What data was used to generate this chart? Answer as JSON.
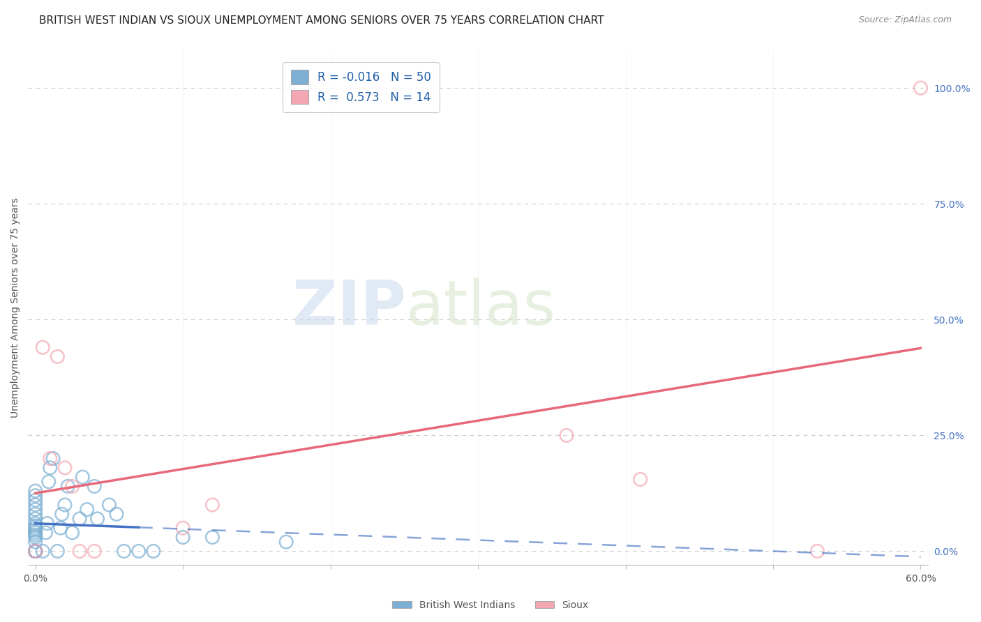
{
  "title": "BRITISH WEST INDIAN VS SIOUX UNEMPLOYMENT AMONG SENIORS OVER 75 YEARS CORRELATION CHART",
  "source": "Source: ZipAtlas.com",
  "xlabel": "",
  "ylabel": "Unemployment Among Seniors over 75 years",
  "xlim": [
    -0.005,
    0.605
  ],
  "ylim": [
    -0.03,
    1.08
  ],
  "xticks": [
    0.0,
    0.1,
    0.2,
    0.3,
    0.4,
    0.5,
    0.6
  ],
  "xticklabels": [
    "0.0%",
    "",
    "",
    "",
    "",
    "",
    "60.0%"
  ],
  "yticks_right": [
    0.0,
    0.25,
    0.5,
    0.75,
    1.0
  ],
  "ytick_right_labels": [
    "0.0%",
    "25.0%",
    "50.0%",
    "75.0%",
    "100.0%"
  ],
  "bwi_color": "#7BAFD4",
  "sioux_color": "#F4A7B3",
  "bwi_line_color": "#4472C4",
  "sioux_line_color": "#E8687A",
  "bwi_R": -0.016,
  "bwi_N": 50,
  "sioux_R": 0.573,
  "sioux_N": 14,
  "watermark_zip": "ZIP",
  "watermark_atlas": "atlas",
  "bwi_x": [
    0.0,
    0.0,
    0.0,
    0.0,
    0.0,
    0.0,
    0.0,
    0.0,
    0.0,
    0.0,
    0.0,
    0.0,
    0.0,
    0.0,
    0.0,
    0.0,
    0.0,
    0.0,
    0.0,
    0.0,
    0.0,
    0.0,
    0.0,
    0.0,
    0.0,
    0.005,
    0.007,
    0.008,
    0.009,
    0.01,
    0.012,
    0.015,
    0.017,
    0.018,
    0.02,
    0.022,
    0.025,
    0.03,
    0.032,
    0.035,
    0.04,
    0.042,
    0.05,
    0.055,
    0.06,
    0.07,
    0.08,
    0.1,
    0.12,
    0.17
  ],
  "bwi_y": [
    0.0,
    0.0,
    0.0,
    0.0,
    0.0,
    0.0,
    0.0,
    0.0,
    0.0,
    0.0,
    0.02,
    0.03,
    0.035,
    0.04,
    0.045,
    0.05,
    0.055,
    0.06,
    0.07,
    0.08,
    0.09,
    0.1,
    0.11,
    0.12,
    0.13,
    0.0,
    0.04,
    0.06,
    0.15,
    0.18,
    0.2,
    0.0,
    0.05,
    0.08,
    0.1,
    0.14,
    0.04,
    0.07,
    0.16,
    0.09,
    0.14,
    0.07,
    0.1,
    0.08,
    0.0,
    0.0,
    0.0,
    0.03,
    0.03,
    0.02
  ],
  "sioux_x": [
    0.0,
    0.005,
    0.01,
    0.015,
    0.02,
    0.025,
    0.03,
    0.04,
    0.1,
    0.12,
    0.36,
    0.41,
    0.53,
    0.6
  ],
  "sioux_y": [
    0.0,
    0.44,
    0.2,
    0.42,
    0.18,
    0.14,
    0.0,
    0.0,
    0.05,
    0.1,
    0.25,
    0.155,
    0.0,
    1.0
  ],
  "grid_color": "#CCCCCC",
  "background_color": "#FFFFFF",
  "title_fontsize": 11,
  "axis_label_fontsize": 10,
  "tick_fontsize": 10,
  "legend_fontsize": 12
}
